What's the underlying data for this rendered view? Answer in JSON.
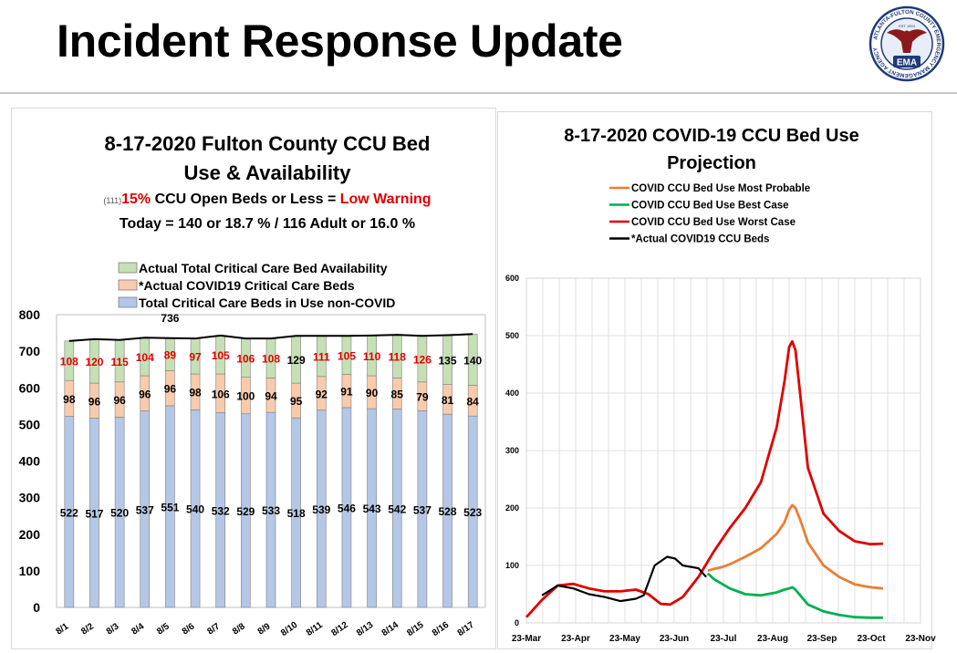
{
  "header": {
    "title": "Incident Response Update"
  },
  "logo": {
    "ring_text": "ATLANTA-FULTON COUNTY EMERGENCY MANAGEMENT AGENCY",
    "est": "EST 1994",
    "abbr": "EMA"
  },
  "left_chart": {
    "title_line1": "8-17-2020 Fulton County CCU Bed",
    "title_line2": "Use & Availability",
    "warning_prefix": "(111)",
    "warning_pct": "15%",
    "warning_mid": " CCU Open Beds or Less = ",
    "warning_level": "Low Warning",
    "today_line": "Today = 140 or 18.7 % / 116 Adult or 16.0 %"
  },
  "right_chart": {
    "title_line1": "8-17-2020 COVID-19 CCU Bed Use",
    "title_line2": "Projection"
  },
  "colors": {
    "noncovid": "#b4c7e7",
    "covid": "#f8cbad",
    "avail": "#c5e0b4",
    "red": "#e00000",
    "orange": "#ed7d31",
    "green": "#00b050",
    "worst": "#e00000",
    "actual": "#000000"
  },
  "chart_data": [
    {
      "type": "bar",
      "stacked": true,
      "categories": [
        "8/1",
        "8/2",
        "8/3",
        "8/4",
        "8/5",
        "8/6",
        "8/7",
        "8/8",
        "8/9",
        "8/10",
        "8/11",
        "8/12",
        "8/13",
        "8/14",
        "8/15",
        "8/16",
        "8/17"
      ],
      "series": [
        {
          "name": "Total  Critical Care Beds in Use non-COVID",
          "values": [
            522,
            517,
            520,
            537,
            551,
            540,
            532,
            529,
            533,
            518,
            539,
            546,
            543,
            542,
            537,
            528,
            523
          ]
        },
        {
          "name": "*Actual COVID19 Critical Care Beds",
          "values": [
            98,
            96,
            96,
            96,
            96,
            98,
            106,
            100,
            94,
            95,
            92,
            91,
            90,
            85,
            79,
            81,
            84
          ]
        },
        {
          "name": "Actual Total Critical Care  Bed Availability",
          "values": [
            108,
            120,
            115,
            104,
            89,
            97,
            105,
            106,
            108,
            129,
            111,
            105,
            110,
            118,
            126,
            135,
            140
          ]
        }
      ],
      "total_line_label": "736",
      "legend": [
        "Actual Total Critical Care  Bed Availability",
        "*Actual COVID19 Critical Care Beds",
        "Total  Critical Care Beds in Use non-COVID"
      ],
      "legend_position": "top",
      "ylim": [
        0,
        800
      ],
      "yticks": [
        0,
        100,
        200,
        300,
        400,
        500,
        600,
        700,
        800
      ],
      "red_threshold": 128
    },
    {
      "type": "line",
      "x_ticks": [
        "23-Mar",
        "23-Apr",
        "23-May",
        "23-Jun",
        "23-Jul",
        "23-Aug",
        "23-Sep",
        "23-Oct",
        "23-Nov"
      ],
      "ylim": [
        0,
        600
      ],
      "yticks": [
        0,
        100,
        200,
        300,
        400,
        500,
        600
      ],
      "legend": [
        "COVID CCU Bed Use Most Probable",
        "COVID CCU Bed Use Best Case",
        "COVID CCU Bed Use Worst Case",
        "*Actual COVID19 CCU Beds"
      ],
      "series": [
        {
          "name": "COVID CCU Bed Use Most Probable",
          "color": "#ed7d31",
          "points": [
            [
              116,
              91
            ],
            [
              120,
              94
            ],
            [
              125,
              97
            ],
            [
              130,
              102
            ],
            [
              140,
              115
            ],
            [
              150,
              130
            ],
            [
              160,
              155
            ],
            [
              165,
              175
            ],
            [
              168,
              197
            ],
            [
              170,
              205
            ],
            [
              172,
              200
            ],
            [
              175,
              180
            ],
            [
              180,
              140
            ],
            [
              190,
              100
            ],
            [
              200,
              80
            ],
            [
              210,
              67
            ],
            [
              220,
              62
            ],
            [
              228,
              60
            ]
          ]
        },
        {
          "name": "COVID CCU Bed Use Best Case",
          "color": "#00b050",
          "points": [
            [
              116,
              86
            ],
            [
              120,
              76
            ],
            [
              130,
              60
            ],
            [
              140,
              50
            ],
            [
              150,
              48
            ],
            [
              160,
              53
            ],
            [
              165,
              58
            ],
            [
              168,
              60
            ],
            [
              170,
              62
            ],
            [
              172,
              58
            ],
            [
              176,
              45
            ],
            [
              180,
              32
            ],
            [
              190,
              20
            ],
            [
              200,
              14
            ],
            [
              210,
              10
            ],
            [
              220,
              9
            ],
            [
              228,
              9
            ]
          ]
        },
        {
          "name": "COVID CCU Bed Use Worst Case",
          "color": "#e00000",
          "points": [
            [
              0,
              10
            ],
            [
              10,
              40
            ],
            [
              20,
              65
            ],
            [
              30,
              68
            ],
            [
              40,
              60
            ],
            [
              50,
              55
            ],
            [
              60,
              55
            ],
            [
              70,
              58
            ],
            [
              78,
              50
            ],
            [
              86,
              33
            ],
            [
              92,
              32
            ],
            [
              100,
              45
            ],
            [
              110,
              80
            ],
            [
              120,
              125
            ],
            [
              130,
              165
            ],
            [
              140,
              200
            ],
            [
              150,
              245
            ],
            [
              160,
              340
            ],
            [
              165,
              420
            ],
            [
              168,
              480
            ],
            [
              170,
              490
            ],
            [
              172,
              475
            ],
            [
              175,
              400
            ],
            [
              180,
              270
            ],
            [
              190,
              190
            ],
            [
              200,
              160
            ],
            [
              210,
              142
            ],
            [
              220,
              137
            ],
            [
              228,
              138
            ]
          ]
        },
        {
          "name": "*Actual COVID19 CCU Beds",
          "color": "#000000",
          "points": [
            [
              10,
              48
            ],
            [
              20,
              65
            ],
            [
              30,
              60
            ],
            [
              40,
              50
            ],
            [
              50,
              45
            ],
            [
              60,
              38
            ],
            [
              70,
              42
            ],
            [
              75,
              48
            ],
            [
              82,
              100
            ],
            [
              90,
              115
            ],
            [
              95,
              112
            ],
            [
              100,
              100
            ],
            [
              110,
              95
            ],
            [
              115,
              80
            ]
          ]
        }
      ]
    }
  ]
}
